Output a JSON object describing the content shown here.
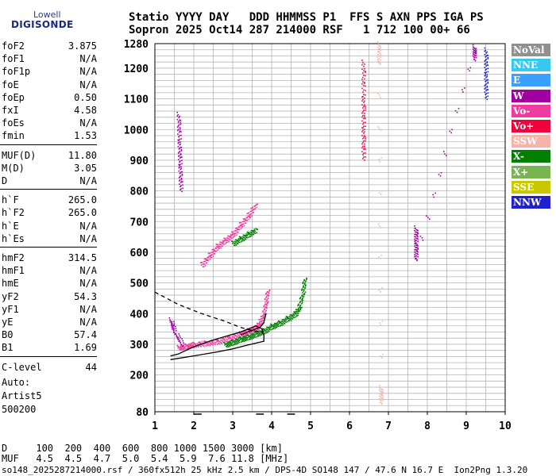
{
  "logo": {
    "line1": "Lowell",
    "line2": "DIGISONDE"
  },
  "header": {
    "row1": "Statio YYYY DAY   DDD HHMMSS P1  FFS S AXN PPS IGA PS",
    "row2": "Sopron 2025 Oct14 287 214000 RSF   1 712 100 00+ 66"
  },
  "params": {
    "group1": [
      {
        "name": "foF2",
        "value": "3.875"
      },
      {
        "name": "foF1",
        "value": "N/A"
      },
      {
        "name": "foF1p",
        "value": "N/A"
      },
      {
        "name": "foE",
        "value": "N/A"
      },
      {
        "name": "foEp",
        "value": "0.50"
      },
      {
        "name": "fxI",
        "value": "4.58"
      },
      {
        "name": "foEs",
        "value": "N/A"
      },
      {
        "name": "fmin",
        "value": "1.53"
      }
    ],
    "group2": [
      {
        "name": "MUF(D)",
        "value": "11.80"
      },
      {
        "name": "M(D)",
        "value": "3.05"
      },
      {
        "name": "D",
        "value": "N/A"
      }
    ],
    "group3": [
      {
        "name": "h`F",
        "value": "265.0"
      },
      {
        "name": "h`F2",
        "value": "265.0"
      },
      {
        "name": "h`E",
        "value": "N/A"
      },
      {
        "name": "h`Es",
        "value": "N/A"
      }
    ],
    "group4": [
      {
        "name": "hmF2",
        "value": "314.5"
      },
      {
        "name": "hmF1",
        "value": "N/A"
      },
      {
        "name": "hmE",
        "value": "N/A"
      },
      {
        "name": "yF2",
        "value": "54.3"
      },
      {
        "name": "yF1",
        "value": "N/A"
      },
      {
        "name": "yE",
        "value": "N/A"
      },
      {
        "name": "B0",
        "value": "57.4"
      },
      {
        "name": "B1",
        "value": "1.69"
      }
    ],
    "group5": [
      {
        "name": "C-level",
        "value": "44"
      }
    ]
  },
  "auto": {
    "line1": "Auto:",
    "line2": "Artist5",
    "line3": "500200"
  },
  "legend": [
    {
      "label": "NoVal",
      "color": "#909090"
    },
    {
      "label": "NNE",
      "color": "#37c8f0"
    },
    {
      "label": "E",
      "color": "#3aa0ff"
    },
    {
      "label": "W",
      "color": "#a000a0"
    },
    {
      "label": "Vo-",
      "color": "#f03ca0"
    },
    {
      "label": "Vo+",
      "color": "#f0003c"
    },
    {
      "label": "SSW",
      "color": "#f5b4aa"
    },
    {
      "label": "X-",
      "color": "#008000"
    },
    {
      "label": "X+",
      "color": "#78b450"
    },
    {
      "label": "SSE",
      "color": "#c8c800"
    },
    {
      "label": "NNW",
      "color": "#2020d0"
    }
  ],
  "muf_table": {
    "row_d": "D     100  200  400  600  800 1000 1500 3000 [km]",
    "row_muf": "MUF   4.5  4.5  4.7  5.0  5.4  5.9  7.6 11.8 [MHz]"
  },
  "footer": "so148_2025287214000.rsf / 360fx512h 25 kHz 2.5 km / DPS-4D SO148 147 / 47.6 N 16.7 E  Ion2Png 1.3.20",
  "chart_data": {
    "type": "scatter",
    "title": "",
    "xlabel": "",
    "ylabel": "",
    "xlim": [
      1,
      10
    ],
    "ylim": [
      80,
      1280
    ],
    "x_ticks": [
      1,
      2,
      3,
      4,
      5,
      6,
      7,
      8,
      9,
      10
    ],
    "y_ticks": [
      80,
      200,
      300,
      400,
      500,
      600,
      700,
      800,
      900,
      1000,
      1100,
      1200,
      1280
    ],
    "grid": true,
    "legend_position": "right",
    "traces": [
      {
        "name": "Vo- F2 trace",
        "color": "#f03ca0",
        "points": [
          [
            1.6,
            290
          ],
          [
            1.8,
            295
          ],
          [
            2.0,
            300
          ],
          [
            2.3,
            305
          ],
          [
            2.6,
            310
          ],
          [
            2.9,
            320
          ],
          [
            3.2,
            335
          ],
          [
            3.4,
            345
          ],
          [
            3.6,
            355
          ],
          [
            3.7,
            375
          ],
          [
            3.8,
            400
          ],
          [
            3.85,
            440
          ],
          [
            3.9,
            480
          ]
        ]
      },
      {
        "name": "X- F2 trace",
        "color": "#008000",
        "points": [
          [
            2.8,
            300
          ],
          [
            3.0,
            308
          ],
          [
            3.2,
            318
          ],
          [
            3.4,
            325
          ],
          [
            3.6,
            335
          ],
          [
            3.8,
            345
          ],
          [
            4.0,
            360
          ],
          [
            4.2,
            370
          ],
          [
            4.4,
            385
          ],
          [
            4.6,
            400
          ],
          [
            4.7,
            420
          ],
          [
            4.8,
            470
          ],
          [
            4.85,
            520
          ]
        ]
      },
      {
        "name": "Vo- second hop",
        "color": "#f03ca0",
        "points": [
          [
            2.2,
            560
          ],
          [
            2.4,
            590
          ],
          [
            2.6,
            620
          ],
          [
            2.8,
            640
          ],
          [
            3.0,
            660
          ],
          [
            3.2,
            690
          ],
          [
            3.4,
            720
          ],
          [
            3.6,
            760
          ]
        ]
      },
      {
        "name": "X- second hop",
        "color": "#008000",
        "points": [
          [
            3.0,
            630
          ],
          [
            3.2,
            645
          ],
          [
            3.4,
            660
          ],
          [
            3.6,
            675
          ]
        ]
      },
      {
        "name": "W early",
        "color": "#a000a0",
        "points": [
          [
            1.4,
            380
          ],
          [
            1.5,
            340
          ],
          [
            1.7,
            300
          ]
        ]
      },
      {
        "name": "W high",
        "color": "#a000a0",
        "points": [
          [
            1.6,
            1050
          ],
          [
            1.62,
            960
          ],
          [
            1.64,
            880
          ],
          [
            1.66,
            800
          ]
        ]
      },
      {
        "name": "Vo+ column",
        "color": "#f0003c",
        "points": [
          [
            6.35,
            1220
          ],
          [
            6.35,
            1100
          ],
          [
            6.35,
            1000
          ],
          [
            6.35,
            900
          ]
        ]
      },
      {
        "name": "SSW column",
        "color": "#f5b4aa",
        "points": [
          [
            6.75,
            1280
          ],
          [
            6.75,
            1220
          ],
          [
            6.8,
            160
          ],
          [
            6.8,
            110
          ]
        ]
      },
      {
        "name": "W column",
        "color": "#a000a0",
        "points": [
          [
            7.7,
            680
          ],
          [
            7.7,
            630
          ],
          [
            7.7,
            580
          ],
          [
            9.2,
            1270
          ],
          [
            9.2,
            1230
          ]
        ]
      },
      {
        "name": "NNW column",
        "color": "#2020d0",
        "points": [
          [
            9.5,
            1260
          ],
          [
            9.5,
            1180
          ],
          [
            9.5,
            1100
          ]
        ]
      }
    ],
    "model_profile": {
      "solid": [
        [
          1.4,
          250
        ],
        [
          2.0,
          262
        ],
        [
          2.6,
          275
        ],
        [
          3.0,
          285
        ],
        [
          3.4,
          298
        ],
        [
          3.8,
          310
        ],
        [
          3.8,
          330
        ],
        [
          3.75,
          350
        ],
        [
          3.6,
          360
        ],
        [
          3.2,
          340
        ],
        [
          2.8,
          325
        ],
        [
          2.4,
          310
        ],
        [
          2.0,
          292
        ],
        [
          1.6,
          268
        ],
        [
          1.4,
          262
        ]
      ],
      "solid_rise": [
        [
          3.2,
          330
        ],
        [
          3.5,
          345
        ],
        [
          3.7,
          355
        ],
        [
          3.8,
          370
        ],
        [
          3.85,
          400
        ]
      ],
      "dashed": [
        [
          1.0,
          470
        ],
        [
          1.6,
          430
        ],
        [
          2.2,
          400
        ],
        [
          2.8,
          375
        ],
        [
          3.2,
          355
        ],
        [
          3.5,
          345
        ],
        [
          3.8,
          338
        ]
      ]
    }
  }
}
